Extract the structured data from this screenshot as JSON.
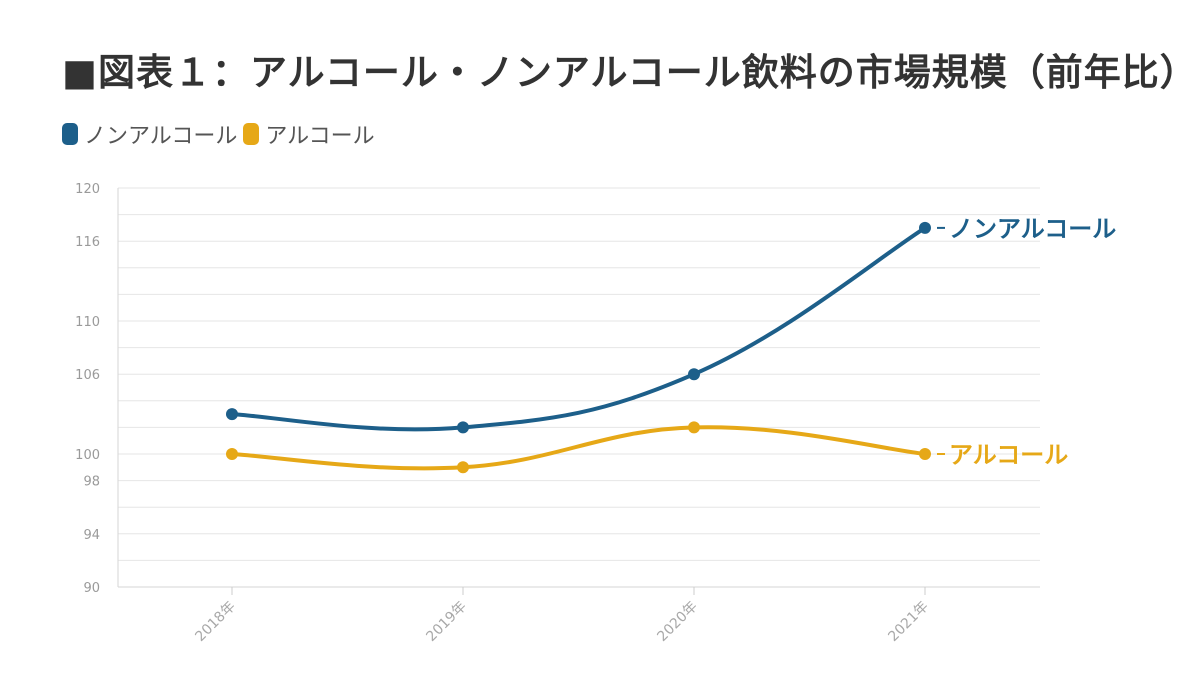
{
  "title": "■図表１：アルコール・ノンアルコール飲料の市場規模（前年比）",
  "chart_data": {
    "type": "line",
    "categories": [
      "2018年",
      "2019年",
      "2020年",
      "2021年"
    ],
    "series": [
      {
        "name": "ノンアルコール",
        "values": [
          103,
          102,
          106,
          117
        ],
        "color": "#1d5f8a"
      },
      {
        "name": "アルコール",
        "values": [
          100,
          99,
          102,
          100
        ],
        "color": "#e6a817"
      }
    ],
    "yticks": [
      90,
      94,
      98,
      100,
      106,
      110,
      116,
      120
    ],
    "ylim": [
      90,
      120
    ],
    "grid": true,
    "legend_position": "top-left"
  }
}
